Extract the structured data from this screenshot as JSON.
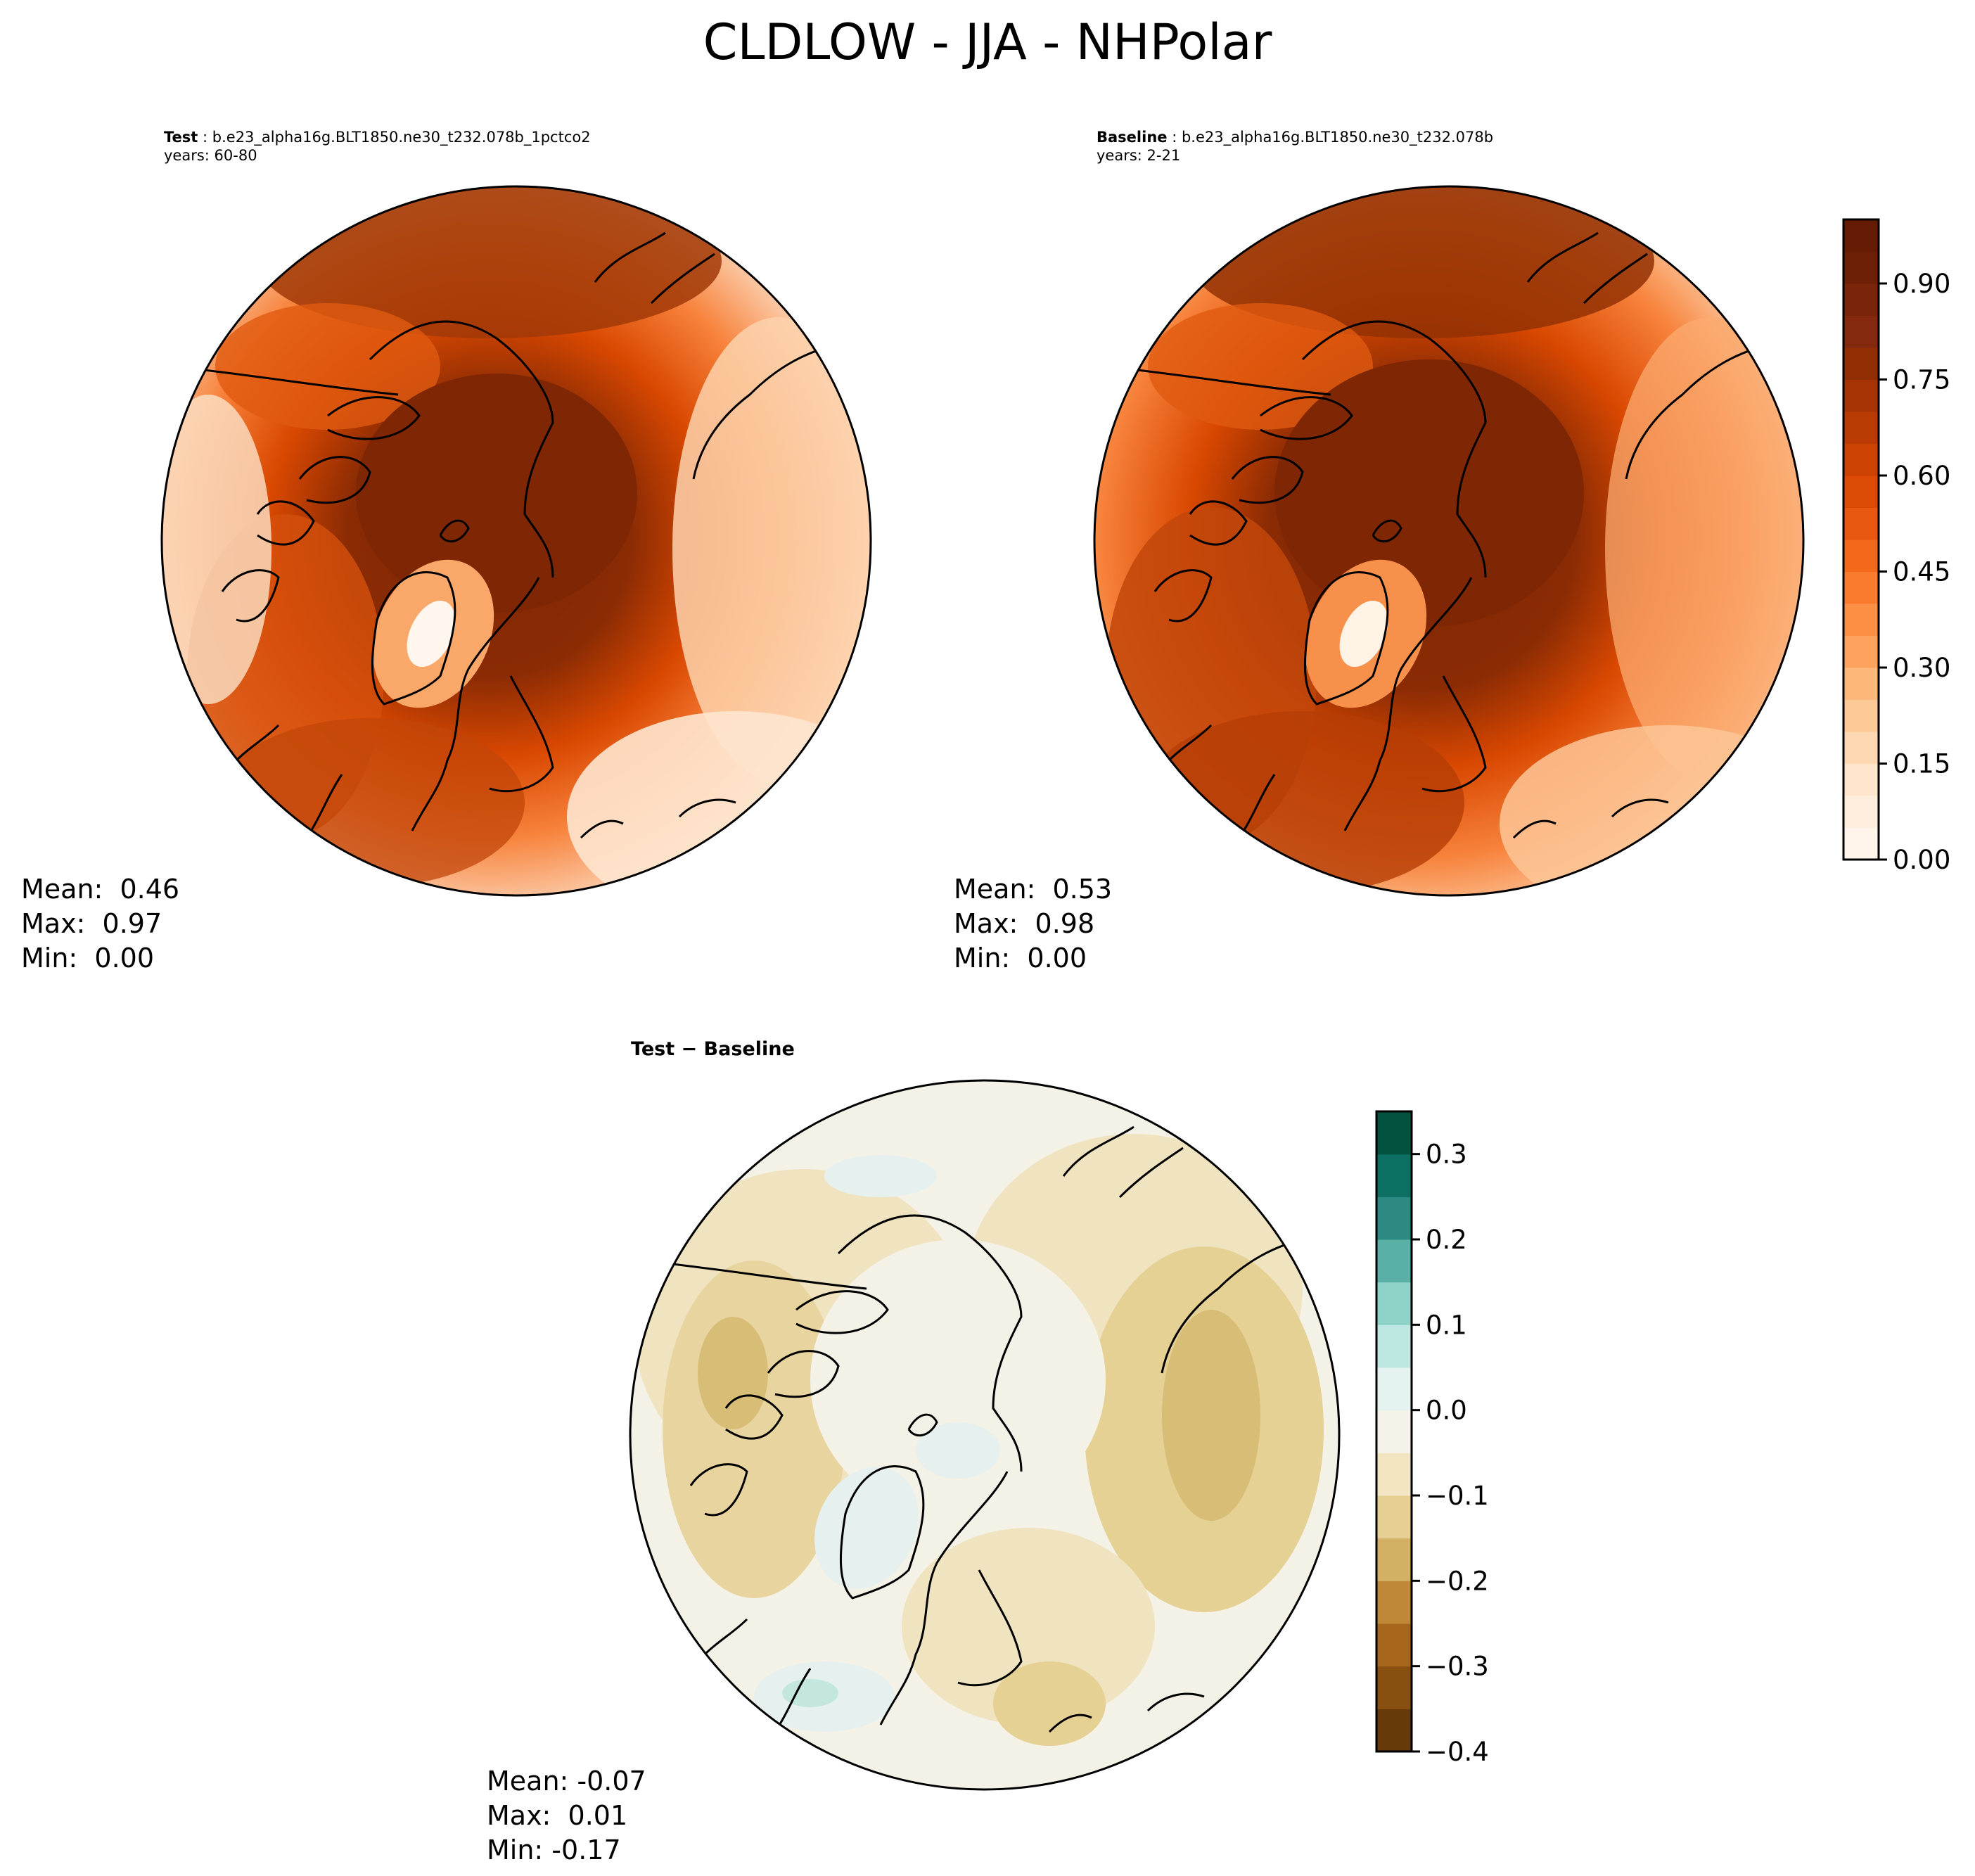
{
  "title": "CLDLOW - JJA - NHPolar",
  "panels": [
    {
      "label": "Test",
      "case": "b.e23_alpha16g.BLT1850.ne30_t232.078b_1pctco2",
      "years": "years: 60-80",
      "mean": "Mean:  0.46",
      "max": "Max:  0.97",
      "min": "Min:  0.00"
    },
    {
      "label": "Baseline",
      "case": "b.e23_alpha16g.BLT1850.ne30_t232.078b",
      "years": "years: 2-21",
      "mean": "Mean:  0.53",
      "max": "Max:  0.98",
      "min": "Min:  0.00"
    },
    {
      "label": "Test − Baseline",
      "mean": "Mean: -0.07",
      "max": "Max:  0.01",
      "min": "Min: -0.17"
    }
  ],
  "colorbars": {
    "fields": {
      "colormap": "Oranges",
      "ticks": [
        "0.00",
        "0.15",
        "0.30",
        "0.45",
        "0.60",
        "0.75",
        "0.90"
      ],
      "range": [
        0.0,
        1.0
      ],
      "levels": 20,
      "colors": [
        "#fff5eb",
        "#feeddc",
        "#fee5cb",
        "#fdd8b3",
        "#fdc997",
        "#fdb77a",
        "#fda35d",
        "#fd8f44",
        "#fa7b2e",
        "#f3691c",
        "#e95710",
        "#dc4a05",
        "#cc4202",
        "#b93a02",
        "#a53303",
        "#922e03",
        "#84290d",
        "#7a2409",
        "#6e2007",
        "#651c05"
      ]
    },
    "difference": {
      "colormap": "BrBG",
      "ticks": [
        "0.3",
        "0.2",
        "0.1",
        "0.0",
        "−0.1",
        "−0.2",
        "−0.3",
        "−0.4"
      ],
      "range": [
        -0.4,
        0.35
      ],
      "levels": 15,
      "colors": [
        "#663a0b",
        "#874f10",
        "#a6671c",
        "#c08736",
        "#d4b064",
        "#e5cf93",
        "#f2e6c2",
        "#f4f2e9",
        "#e4f3f0",
        "#bfe7e1",
        "#8fd2c7",
        "#5bb0a5",
        "#2c8a82",
        "#0b6f62",
        "#01533f"
      ]
    }
  },
  "icons": [
    "coastline-map",
    "polar-projection"
  ]
}
